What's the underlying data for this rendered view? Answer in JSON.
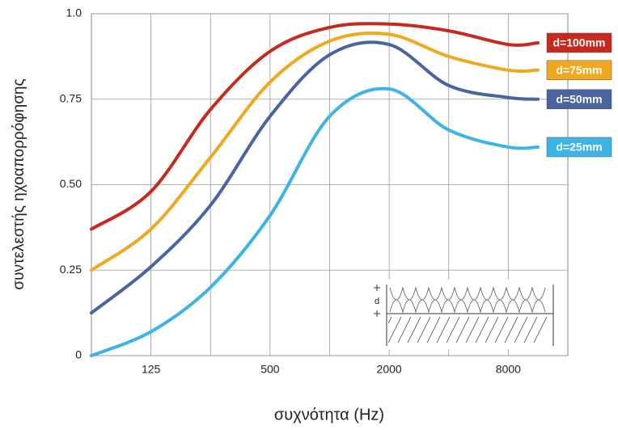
{
  "chart_data": {
    "type": "line",
    "y_label": "συντελεστής ηχοαπορρόφησης",
    "x_label": "συχνότητα (Hz)",
    "x_scale": "log",
    "x": [
      62.5,
      125,
      250,
      500,
      1000,
      2000,
      4000,
      8000,
      11300
    ],
    "xlim": [
      62.5,
      16000
    ],
    "xticks": [
      125,
      500,
      2000,
      8000
    ],
    "xgrid": [
      125,
      250,
      500,
      1000,
      2000,
      4000,
      8000
    ],
    "ylim": [
      0,
      1
    ],
    "yticks": [
      0,
      0.25,
      {
        "value": 0.5,
        "label": "0.50"
      },
      0.75,
      {
        "value": 1,
        "label": "1.0"
      }
    ],
    "grid": true,
    "legend": "right",
    "inset_label": "d",
    "series": [
      {
        "name": "d=100mm",
        "color": "#c8281e",
        "values": [
          0.37,
          0.48,
          0.72,
          0.89,
          0.96,
          0.97,
          0.95,
          0.91,
          0.915
        ]
      },
      {
        "name": "d=75mm",
        "color": "#f0a81e",
        "values": [
          0.25,
          0.37,
          0.58,
          0.8,
          0.92,
          0.94,
          0.875,
          0.835,
          0.835
        ]
      },
      {
        "name": "d=50mm",
        "color": "#4a64a0",
        "values": [
          0.125,
          0.26,
          0.44,
          0.7,
          0.88,
          0.91,
          0.79,
          0.755,
          0.75
        ]
      },
      {
        "name": "d=25mm",
        "color": "#3cb4e6",
        "values": [
          0,
          0.07,
          0.2,
          0.41,
          0.7,
          0.78,
          0.66,
          0.61,
          0.61
        ]
      }
    ]
  }
}
